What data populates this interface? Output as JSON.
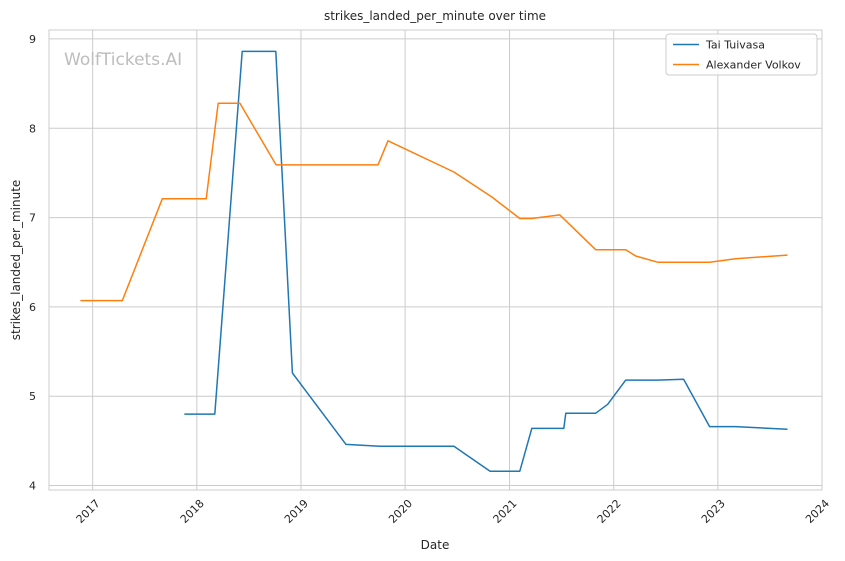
{
  "chart_data": {
    "type": "line",
    "title": "strikes_landed_per_minute over time",
    "xlabel": "Date",
    "ylabel": "strikes_landed_per_minute",
    "watermark": "WolfTickets.AI",
    "x_ticks": [
      "2017",
      "2018",
      "2019",
      "2020",
      "2021",
      "2022",
      "2023",
      "2024"
    ],
    "y_ticks": [
      "4",
      "5",
      "6",
      "7",
      "8",
      "9"
    ],
    "xlim": [
      "2016-08-01",
      "2024-01-01"
    ],
    "ylim": [
      3.95,
      9.1
    ],
    "grid": true,
    "legend_position": "top-right",
    "series": [
      {
        "name": "Tai Tuivasa",
        "color": "#1f77b4",
        "points": [
          [
            "2017-11-18",
            4.8
          ],
          [
            "2018-03-05",
            4.8
          ],
          [
            "2018-06-09",
            8.86
          ],
          [
            "2018-10-05",
            8.86
          ],
          [
            "2018-12-02",
            5.26
          ],
          [
            "2019-06-08",
            4.46
          ],
          [
            "2019-10-05",
            4.44
          ],
          [
            "2020-06-20",
            4.44
          ],
          [
            "2020-10-25",
            4.16
          ],
          [
            "2021-02-06",
            4.16
          ],
          [
            "2021-03-20",
            4.64
          ],
          [
            "2021-07-10",
            4.64
          ],
          [
            "2021-07-17",
            4.81
          ],
          [
            "2021-10-30",
            4.81
          ],
          [
            "2021-12-11",
            4.91
          ],
          [
            "2022-02-12",
            5.18
          ],
          [
            "2022-06-04",
            5.18
          ],
          [
            "2022-09-03",
            5.19
          ],
          [
            "2022-12-03",
            4.66
          ],
          [
            "2023-03-04",
            4.66
          ],
          [
            "2023-09-02",
            4.63
          ]
        ]
      },
      {
        "name": "Alexander Volkov",
        "color": "#ff7f0e",
        "points": [
          [
            "2016-11-19",
            6.07
          ],
          [
            "2017-04-15",
            6.07
          ],
          [
            "2017-09-02",
            7.21
          ],
          [
            "2018-02-03",
            7.21
          ],
          [
            "2018-03-17",
            8.28
          ],
          [
            "2018-06-01",
            8.28
          ],
          [
            "2018-10-06",
            7.59
          ],
          [
            "2019-09-28",
            7.59
          ],
          [
            "2019-11-02",
            7.86
          ],
          [
            "2020-06-20",
            7.51
          ],
          [
            "2020-10-31",
            7.23
          ],
          [
            "2021-02-06",
            6.99
          ],
          [
            "2021-03-20",
            6.99
          ],
          [
            "2021-06-26",
            7.03
          ],
          [
            "2021-10-30",
            6.64
          ],
          [
            "2022-02-12",
            6.64
          ],
          [
            "2022-03-19",
            6.57
          ],
          [
            "2022-06-04",
            6.5
          ],
          [
            "2022-12-03",
            6.5
          ],
          [
            "2023-03-04",
            6.54
          ],
          [
            "2023-09-02",
            6.58
          ]
        ]
      }
    ]
  }
}
